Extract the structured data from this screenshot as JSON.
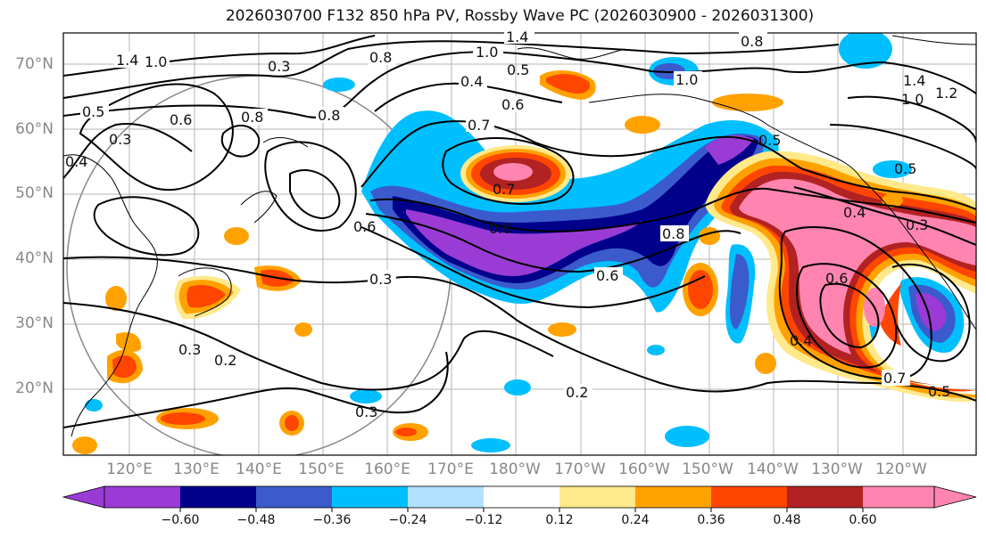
{
  "title": "2026030700 F132 850 hPa PV, Rossby Wave PC (2026030900 - 2026031300)",
  "latitude_labels": [
    "70°N",
    "60°N",
    "50°N",
    "40°N",
    "30°N",
    "20°N"
  ],
  "longitude_labels": [
    "120°E",
    "130°E",
    "140°E",
    "150°E",
    "160°E",
    "170°E",
    "180°W",
    "170°W",
    "160°W",
    "150°W",
    "140°W",
    "130°W",
    "120°W"
  ],
  "colorbar": {
    "tick_labels": [
      "−0.60",
      "−0.48",
      "−0.36",
      "−0.24",
      "−0.12",
      "0.12",
      "0.24",
      "0.36",
      "0.48",
      "0.60"
    ],
    "colors": [
      "#9a3bd6",
      "#00008b",
      "#3b5bcd",
      "#00bfff",
      "#b0e2ff",
      "#ffffff",
      "#ffe98a",
      "#ffa200",
      "#ff4500",
      "#b22222",
      "#ff85b0"
    ]
  },
  "contour_labels": [
    "1.4",
    "1.0",
    "0.5",
    "0.8",
    "1.4",
    "1.0",
    "0.8",
    "0.4",
    "0.6",
    "0.7",
    "0.8",
    "0.8",
    "0.6",
    "0.3",
    "0.2",
    "0.3",
    "0.2",
    "0.3",
    "0.6",
    "0.8",
    "1.0",
    "1.2",
    "1.4",
    "1.0",
    "0.4",
    "0.3",
    "0.5",
    "0.4",
    "0.6",
    "0.7",
    "0.5",
    "0.5",
    "0.3",
    "0.4",
    "0.6",
    "0.3",
    "0.7",
    "0.5",
    "0.8"
  ]
}
